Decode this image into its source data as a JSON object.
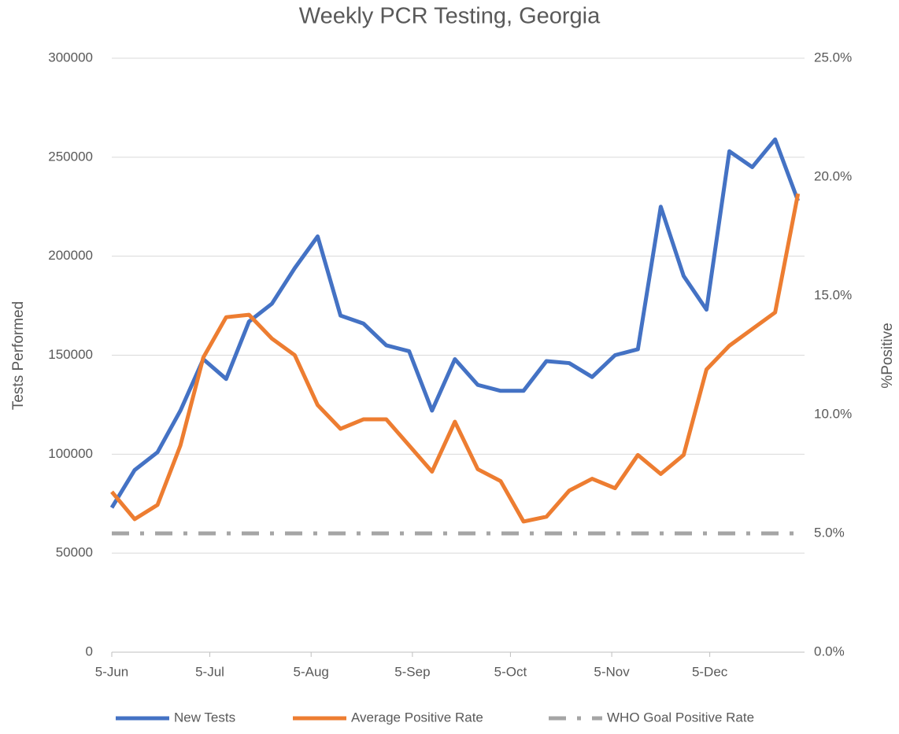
{
  "chart_data": {
    "type": "line",
    "title": "Weekly PCR Testing, Georgia",
    "ylabel": "Tests Performed",
    "y2label": "%Positive",
    "x": [
      0,
      7,
      14,
      21,
      28,
      35,
      42,
      49,
      56,
      63,
      70,
      77,
      84,
      91,
      98,
      105,
      112,
      119,
      126,
      133,
      140,
      147,
      154,
      161,
      168,
      175,
      182,
      189,
      196,
      203,
      210
    ],
    "xlim": [
      0,
      212
    ],
    "xticks": [
      {
        "value": 0,
        "label": "5-Jun"
      },
      {
        "value": 30,
        "label": "5-Jul"
      },
      {
        "value": 61,
        "label": "5-Aug"
      },
      {
        "value": 92,
        "label": "5-Sep"
      },
      {
        "value": 122,
        "label": "5-Oct"
      },
      {
        "value": 153,
        "label": "5-Nov"
      },
      {
        "value": 183,
        "label": "5-Dec"
      }
    ],
    "ylim": [
      0,
      300000
    ],
    "yticks": [
      0,
      50000,
      100000,
      150000,
      200000,
      250000,
      300000
    ],
    "y2lim": [
      0,
      25
    ],
    "y2ticks": [
      {
        "value": 0,
        "label": "0.0%"
      },
      {
        "value": 5,
        "label": "5.0%"
      },
      {
        "value": 10,
        "label": "10.0%"
      },
      {
        "value": 15,
        "label": "15.0%"
      },
      {
        "value": 20,
        "label": "20.0%"
      },
      {
        "value": 25,
        "label": "25.0%"
      }
    ],
    "grid": true,
    "legend": "bottom",
    "series": [
      {
        "name": "New Tests",
        "color": "#4472c4",
        "values": [
          73000,
          92000,
          101000,
          122000,
          148000,
          138000,
          167000,
          176000,
          194000,
          210000,
          170000,
          166000,
          155000,
          152000,
          122000,
          148000,
          135000,
          132000,
          132000,
          147000,
          146000,
          139000,
          150000,
          153000,
          225000,
          190000,
          173000,
          253000,
          245000,
          259000,
          228000
        ]
      },
      {
        "name": "Average Positive Rate",
        "color": "#ed7d31",
        "axis": "y2",
        "values": [
          6.75,
          5.6,
          6.2,
          8.7,
          12.4,
          14.1,
          14.2,
          13.2,
          12.5,
          10.4,
          9.4,
          9.8,
          9.8,
          8.7,
          7.6,
          9.7,
          7.7,
          7.2,
          5.5,
          5.7,
          6.8,
          7.3,
          6.9,
          8.3,
          7.5,
          8.3,
          11.9,
          12.9,
          13.6,
          14.3,
          19.3
        ]
      },
      {
        "name": "WHO Goal Positive Rate",
        "color": "#a5a5a5",
        "axis": "y2",
        "dashed": true,
        "values": [
          5,
          5,
          5,
          5,
          5,
          5,
          5,
          5,
          5,
          5,
          5,
          5,
          5,
          5,
          5,
          5,
          5,
          5,
          5,
          5,
          5,
          5,
          5,
          5,
          5,
          5,
          5,
          5,
          5,
          5,
          5
        ]
      }
    ]
  }
}
